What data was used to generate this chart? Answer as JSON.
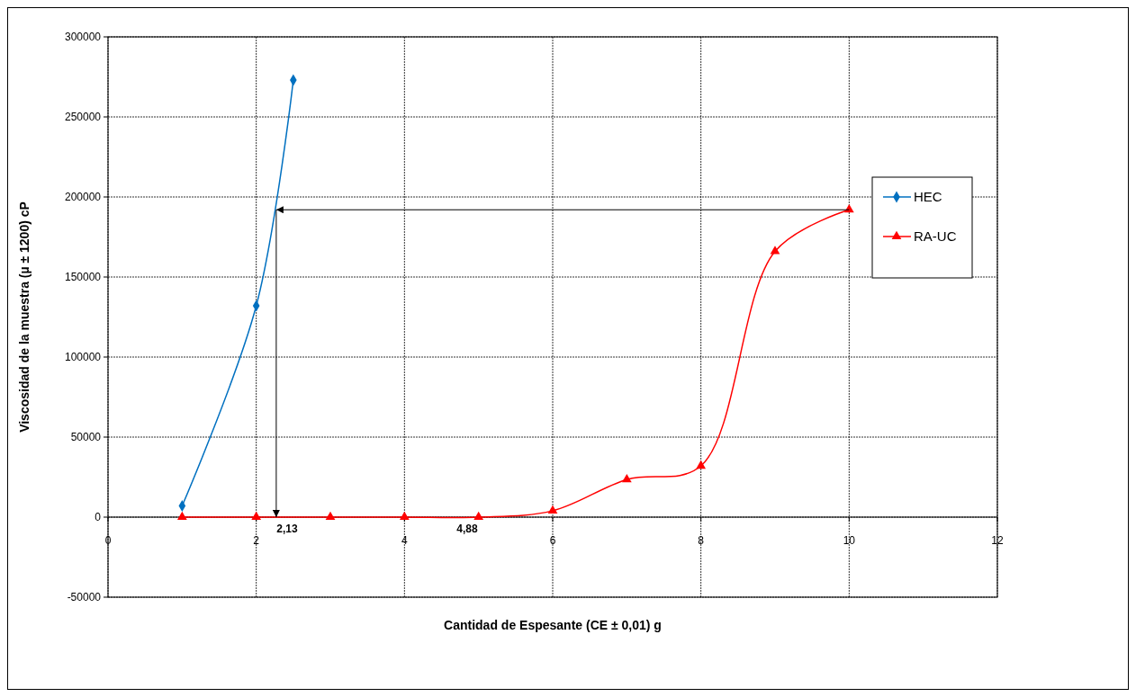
{
  "chart_data": {
    "type": "line",
    "xlabel": "Cantidad de Espesante (CE ±  0,01) g",
    "ylabel": "Viscosidad de la muestra (µ ± 1200) cP",
    "xlim": [
      0,
      12
    ],
    "xticks": [
      0,
      2,
      4,
      6,
      8,
      10,
      12
    ],
    "ylim": [
      -50000,
      300000
    ],
    "yticks": [
      -50000,
      0,
      50000,
      100000,
      150000,
      200000,
      250000,
      300000
    ],
    "grid": true,
    "legend": "right",
    "series": [
      {
        "name": "HEC",
        "color": "#0070c0",
        "marker": "diamond",
        "x": [
          1,
          2,
          2.5
        ],
        "values": [
          7000,
          132000,
          273000
        ]
      },
      {
        "name": "RA-UC",
        "color": "#ff0000",
        "marker": "triangle",
        "x": [
          1,
          2,
          3,
          4,
          5,
          6,
          7,
          8,
          9,
          10
        ],
        "values": [
          0,
          0,
          0,
          0,
          0,
          4000,
          23500,
          32000,
          166000,
          192000
        ]
      }
    ],
    "annotations": [
      {
        "text": "2,13",
        "x": 2.27,
        "y": 0
      },
      {
        "text": "4,88",
        "x": 4.7,
        "y": 0
      }
    ]
  }
}
